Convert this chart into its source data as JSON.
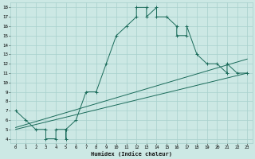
{
  "xlabel": "Humidex (Indice chaleur)",
  "bg_color": "#cce8e4",
  "grid_color": "#a8d0cc",
  "line_color": "#1a6b5a",
  "xlim": [
    -0.5,
    23.5
  ],
  "ylim": [
    3.5,
    18.5
  ],
  "xticks": [
    0,
    1,
    2,
    3,
    4,
    5,
    6,
    7,
    8,
    9,
    10,
    11,
    12,
    13,
    14,
    15,
    16,
    17,
    18,
    19,
    20,
    21,
    22,
    23
  ],
  "yticks": [
    4,
    5,
    6,
    7,
    8,
    9,
    10,
    11,
    12,
    13,
    14,
    15,
    16,
    17,
    18
  ],
  "curve1_x": [
    0,
    1,
    2,
    3,
    3,
    4,
    4,
    5,
    5,
    5,
    6,
    7,
    8,
    9,
    10,
    11,
    12,
    12,
    13,
    13,
    14,
    14,
    15,
    16,
    16,
    17,
    17,
    18,
    19,
    20,
    21,
    21,
    22,
    23
  ],
  "curve1_y": [
    7,
    6,
    5,
    5,
    4,
    4,
    5,
    5,
    4,
    5,
    6,
    9,
    9,
    12,
    15,
    16,
    17,
    18,
    18,
    17,
    18,
    17,
    17,
    16,
    15,
    15,
    16,
    13,
    12,
    12,
    11,
    12,
    11,
    11
  ],
  "line2_x": [
    0,
    23
  ],
  "line2_y": [
    5.2,
    12.5
  ],
  "line3_x": [
    0,
    23
  ],
  "line3_y": [
    5.0,
    11.0
  ],
  "marker": "+"
}
